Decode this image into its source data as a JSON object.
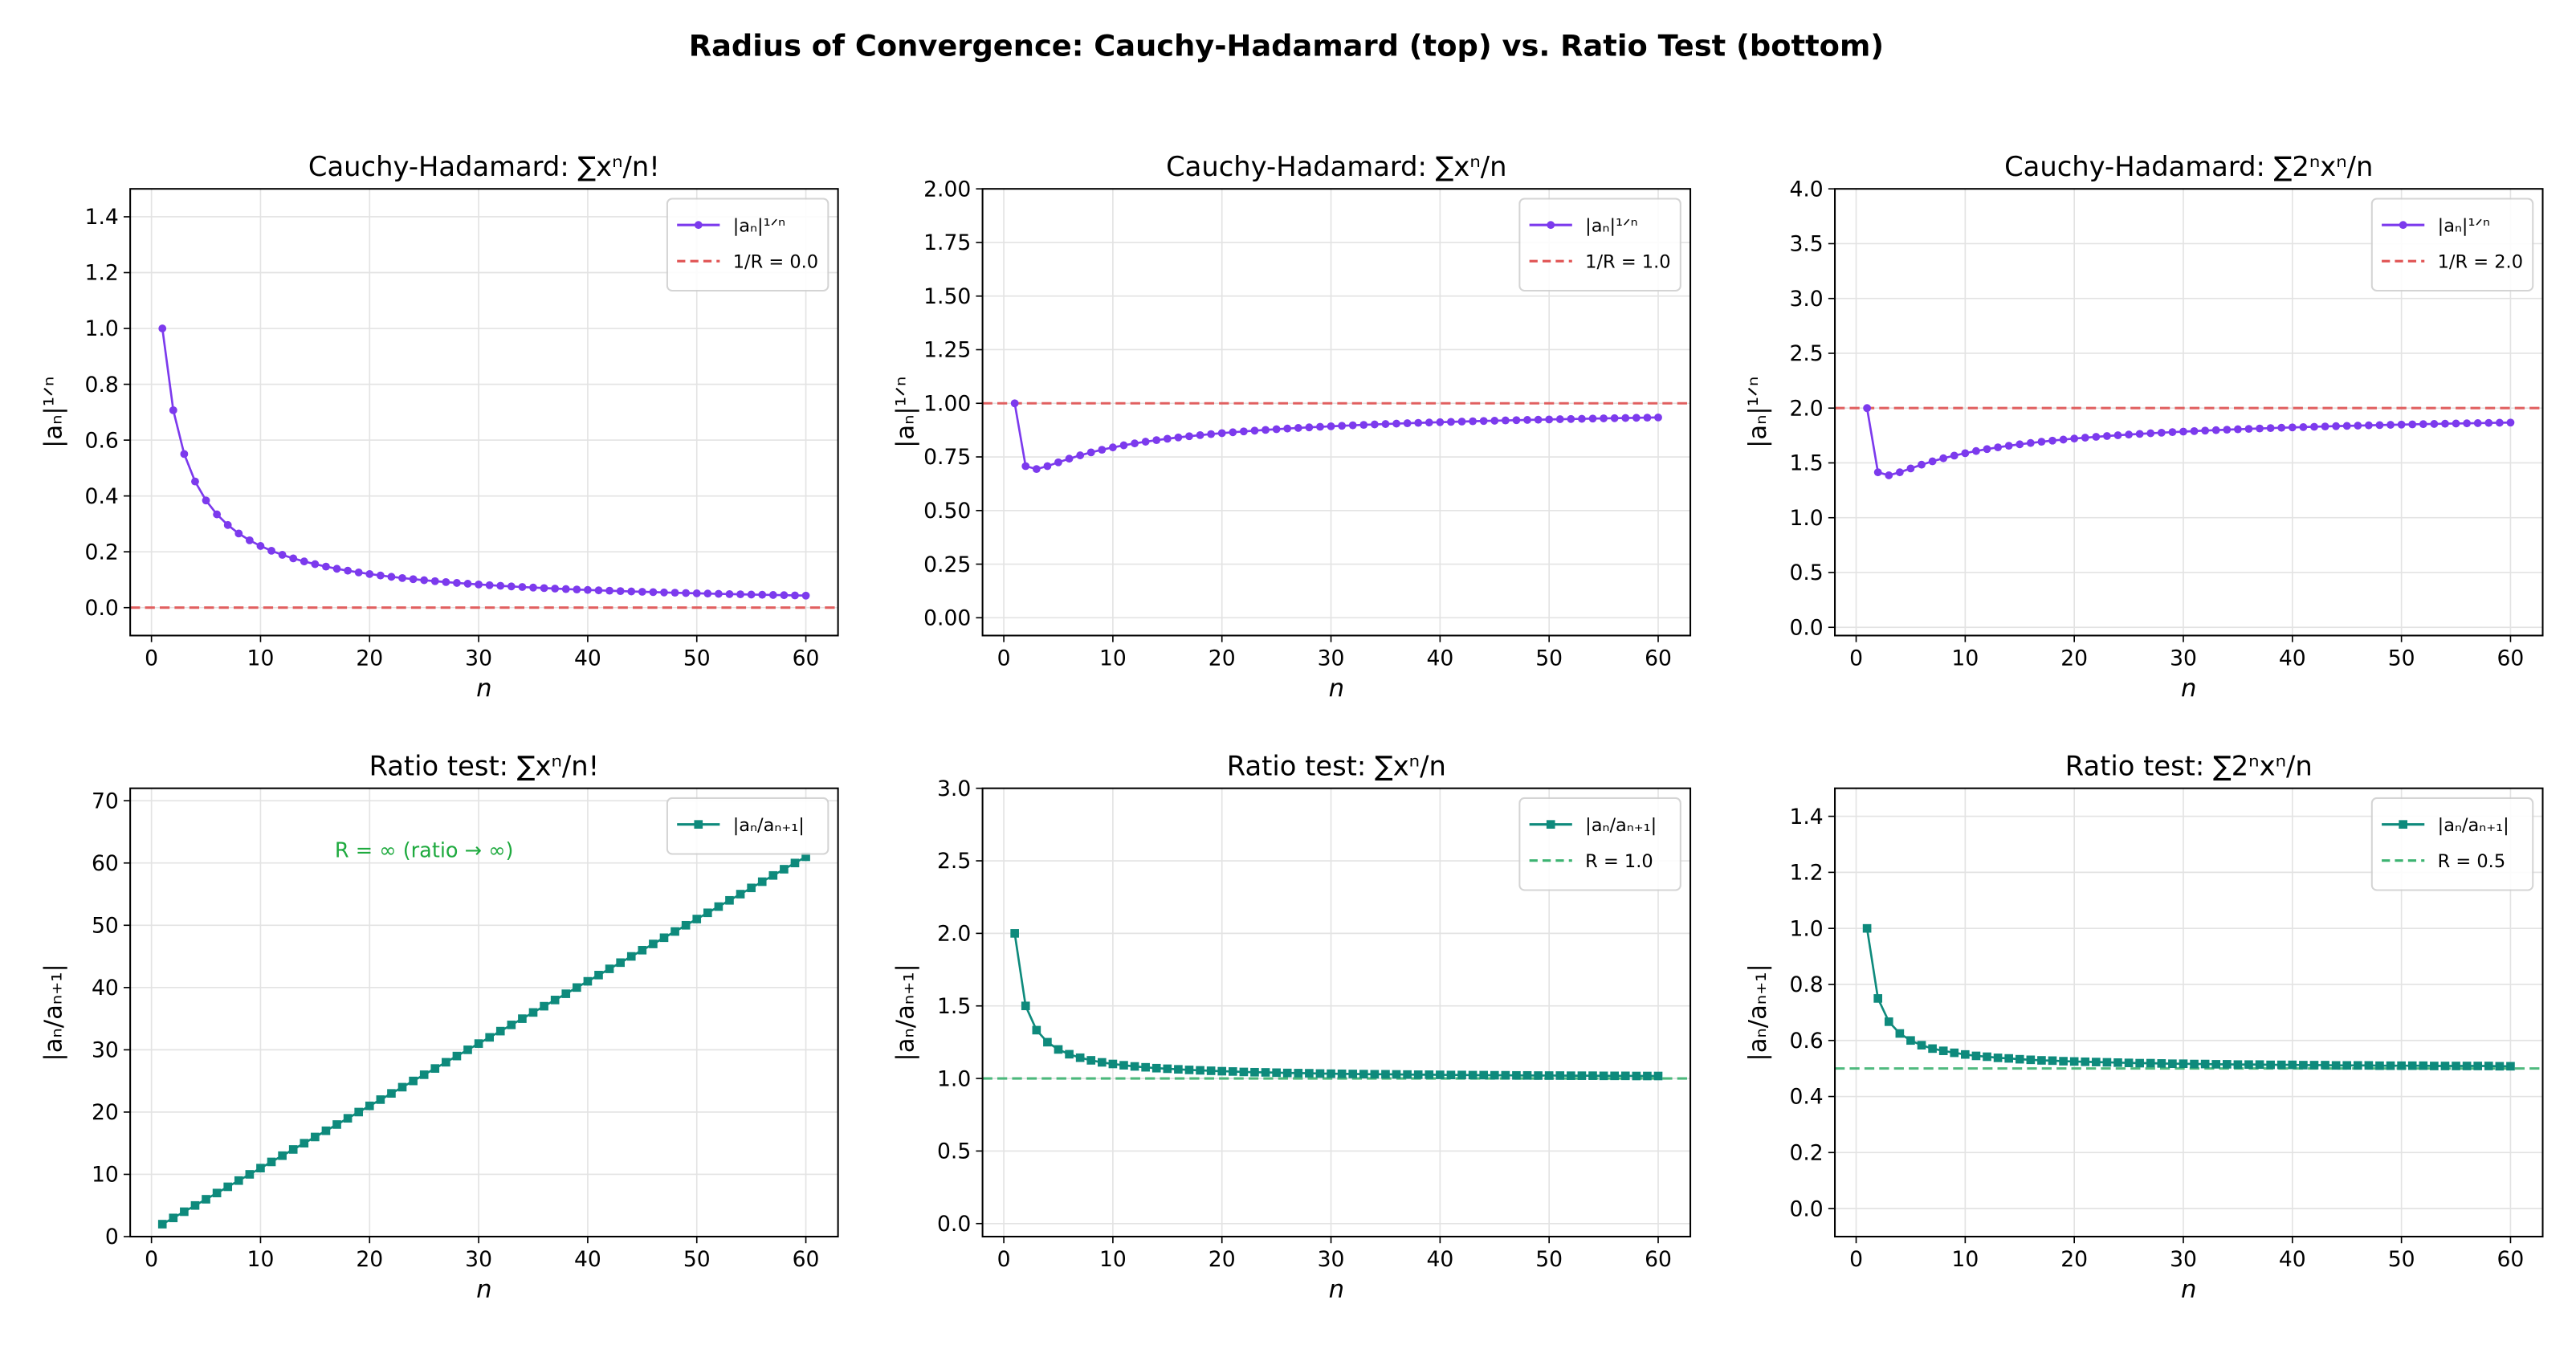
{
  "suptitle": "Radius of Convergence: Cauchy-Hadamard (top) vs. Ratio Test (bottom)",
  "colors": {
    "root_series": "#7c3aed",
    "root_ref": "#e05252",
    "ratio_series": "#0e8a7c",
    "ratio_ref": "#3cb371",
    "annotation": "#1faa3f"
  },
  "chart_data": [
    {
      "type": "line",
      "title": "Cauchy-Hadamard: ∑xⁿ/n!",
      "xlabel": "n",
      "ylabel": "|aₙ|¹ᐟⁿ",
      "xlim": [
        -1.95,
        62.95
      ],
      "ylim": [
        -0.1,
        1.5
      ],
      "grid": true,
      "legend": "top-right",
      "xticks": [
        "0",
        "10",
        "20",
        "30",
        "40",
        "50",
        "60"
      ],
      "yticks": [
        "0.0",
        "0.2",
        "0.4",
        "0.6",
        "0.8",
        "1.0",
        "1.2",
        "1.4"
      ],
      "marker": "circle",
      "series": [
        {
          "name": "|aₙ|¹ᐟⁿ",
          "x": [
            1,
            2,
            3,
            4,
            5,
            6,
            7,
            8,
            9,
            10,
            11,
            12,
            13,
            14,
            15,
            16,
            17,
            18,
            19,
            20,
            21,
            22,
            23,
            24,
            25,
            26,
            27,
            28,
            29,
            30,
            31,
            32,
            33,
            34,
            35,
            36,
            37,
            38,
            39,
            40,
            41,
            42,
            43,
            44,
            45,
            46,
            47,
            48,
            49,
            50,
            51,
            52,
            53,
            54,
            55,
            56,
            57,
            58,
            59,
            60
          ],
          "values": [
            1,
            0.7071,
            0.5503,
            0.4518,
            0.3839,
            0.334,
            0.2959,
            0.2656,
            0.2411,
            0.2208,
            0.2037,
            0.1891,
            0.1764,
            0.1654,
            0.1557,
            0.147,
            0.1393,
            0.1324,
            0.1261,
            0.1204,
            0.1152,
            0.1104,
            0.106,
            0.102,
            0.0983,
            0.0948,
            0.0916,
            0.0885,
            0.0857,
            0.083,
            0.0805,
            0.0782,
            0.076,
            0.0739,
            0.0719,
            0.07,
            0.0682,
            0.0665,
            0.0649,
            0.0634,
            0.0619,
            0.0606,
            0.0592,
            0.058,
            0.0567,
            0.0556,
            0.0544,
            0.0534,
            0.0523,
            0.0513,
            0.0504,
            0.0494,
            0.0485,
            0.0477,
            0.0469,
            0.0461,
            0.0453,
            0.0446,
            0.0438,
            0.0431
          ]
        }
      ],
      "reference": {
        "name": "1/R = 0.0",
        "value": 0.0
      }
    },
    {
      "type": "line",
      "title": "Cauchy-Hadamard: ∑xⁿ/n",
      "xlabel": "n",
      "ylabel": "|aₙ|¹ᐟⁿ",
      "xlim": [
        -1.95,
        62.95
      ],
      "ylim": [
        -0.083,
        2.0
      ],
      "grid": true,
      "legend": "top-right",
      "xticks": [
        "0",
        "10",
        "20",
        "30",
        "40",
        "50",
        "60"
      ],
      "yticks": [
        "0.00",
        "0.25",
        "0.50",
        "0.75",
        "1.00",
        "1.25",
        "1.50",
        "1.75",
        "2.00"
      ],
      "marker": "circle",
      "series": [
        {
          "name": "|aₙ|¹ᐟⁿ",
          "x": [
            1,
            2,
            3,
            4,
            5,
            6,
            7,
            8,
            9,
            10,
            11,
            12,
            13,
            14,
            15,
            16,
            17,
            18,
            19,
            20,
            21,
            22,
            23,
            24,
            25,
            26,
            27,
            28,
            29,
            30,
            31,
            32,
            33,
            34,
            35,
            36,
            37,
            38,
            39,
            40,
            41,
            42,
            43,
            44,
            45,
            46,
            47,
            48,
            49,
            50,
            51,
            52,
            53,
            54,
            55,
            56,
            57,
            58,
            59,
            60
          ],
          "values": [
            1,
            0.7071,
            0.6934,
            0.7071,
            0.7248,
            0.7418,
            0.7573,
            0.7711,
            0.7834,
            0.7943,
            0.8041,
            0.813,
            0.8209,
            0.8282,
            0.8348,
            0.8409,
            0.8465,
            0.8516,
            0.8564,
            0.8609,
            0.865,
            0.8689,
            0.8726,
            0.876,
            0.8792,
            0.8822,
            0.8851,
            0.8878,
            0.8904,
            0.8928,
            0.8951,
            0.8974,
            0.8995,
            0.9015,
            0.9034,
            0.9052,
            0.907,
            0.9087,
            0.9103,
            0.9119,
            0.9134,
            0.9148,
            0.9162,
            0.9176,
            0.9189,
            0.9201,
            0.9213,
            0.9225,
            0.9236,
            0.9247,
            0.9258,
            0.9268,
            0.9278,
            0.9288,
            0.9297,
            0.9306,
            0.9315,
            0.9324,
            0.9332,
            0.934
          ]
        }
      ],
      "reference": {
        "name": "1/R = 1.0",
        "value": 1.0
      }
    },
    {
      "type": "line",
      "title": "Cauchy-Hadamard: ∑2ⁿxⁿ/n",
      "xlabel": "n",
      "ylabel": "|aₙ|¹ᐟⁿ",
      "xlim": [
        -1.95,
        62.95
      ],
      "ylim": [
        -0.075,
        4.0
      ],
      "grid": true,
      "legend": "top-right",
      "xticks": [
        "0",
        "10",
        "20",
        "30",
        "40",
        "50",
        "60"
      ],
      "yticks": [
        "0.0",
        "0.5",
        "1.0",
        "1.5",
        "2.0",
        "2.5",
        "3.0",
        "3.5",
        "4.0"
      ],
      "marker": "circle",
      "series": [
        {
          "name": "|aₙ|¹ᐟⁿ",
          "x": [
            1,
            2,
            3,
            4,
            5,
            6,
            7,
            8,
            9,
            10,
            11,
            12,
            13,
            14,
            15,
            16,
            17,
            18,
            19,
            20,
            21,
            22,
            23,
            24,
            25,
            26,
            27,
            28,
            29,
            30,
            31,
            32,
            33,
            34,
            35,
            36,
            37,
            38,
            39,
            40,
            41,
            42,
            43,
            44,
            45,
            46,
            47,
            48,
            49,
            50,
            51,
            52,
            53,
            54,
            55,
            56,
            57,
            58,
            59,
            60
          ],
          "values": [
            2,
            1.4142,
            1.3868,
            1.4142,
            1.4496,
            1.4836,
            1.5146,
            1.5422,
            1.5668,
            1.5886,
            1.6082,
            1.626,
            1.6418,
            1.6564,
            1.6696,
            1.6818,
            1.693,
            1.7032,
            1.7128,
            1.7218,
            1.73,
            1.7378,
            1.7452,
            1.752,
            1.7584,
            1.7644,
            1.7702,
            1.7756,
            1.7808,
            1.7856,
            1.7902,
            1.7948,
            1.799,
            1.803,
            1.8068,
            1.8104,
            1.814,
            1.8174,
            1.8206,
            1.8238,
            1.8268,
            1.8296,
            1.8324,
            1.8352,
            1.8378,
            1.8402,
            1.8426,
            1.845,
            1.8472,
            1.8494,
            1.8516,
            1.8536,
            1.8556,
            1.8576,
            1.8594,
            1.8612,
            1.863,
            1.8648,
            1.8664,
            1.868
          ]
        }
      ],
      "reference": {
        "name": "1/R = 2.0",
        "value": 2.0
      }
    },
    {
      "type": "line",
      "title": "Ratio test: ∑xⁿ/n!",
      "xlabel": "n",
      "ylabel": "|aₙ/aₙ₊₁|",
      "xlim": [
        -1.95,
        62.95
      ],
      "ylim": [
        0,
        72
      ],
      "grid": true,
      "legend": "top-right",
      "xticks": [
        "0",
        "10",
        "20",
        "30",
        "40",
        "50",
        "60"
      ],
      "yticks": [
        "0",
        "10",
        "20",
        "30",
        "40",
        "50",
        "60",
        "70"
      ],
      "marker": "square",
      "series": [
        {
          "name": "|aₙ/aₙ₊₁|",
          "x": [
            1,
            2,
            3,
            4,
            5,
            6,
            7,
            8,
            9,
            10,
            11,
            12,
            13,
            14,
            15,
            16,
            17,
            18,
            19,
            20,
            21,
            22,
            23,
            24,
            25,
            26,
            27,
            28,
            29,
            30,
            31,
            32,
            33,
            34,
            35,
            36,
            37,
            38,
            39,
            40,
            41,
            42,
            43,
            44,
            45,
            46,
            47,
            48,
            49,
            50,
            51,
            52,
            53,
            54,
            55,
            56,
            57,
            58,
            59,
            60
          ],
          "values": [
            2,
            3,
            4,
            5,
            6,
            7,
            8,
            9,
            10,
            11,
            12,
            13,
            14,
            15,
            16,
            17,
            18,
            19,
            20,
            21,
            22,
            23,
            24,
            25,
            26,
            27,
            28,
            29,
            30,
            31,
            32,
            33,
            34,
            35,
            36,
            37,
            38,
            39,
            40,
            41,
            42,
            43,
            44,
            45,
            46,
            47,
            48,
            49,
            50,
            51,
            52,
            53,
            54,
            55,
            56,
            57,
            58,
            59,
            60,
            61
          ]
        }
      ],
      "annotation": {
        "text": "R = ∞ (ratio → ∞)",
        "x": 25,
        "y": 62
      }
    },
    {
      "type": "line",
      "title": "Ratio test: ∑xⁿ/n",
      "xlabel": "n",
      "ylabel": "|aₙ/aₙ₊₁|",
      "xlim": [
        -1.95,
        62.95
      ],
      "ylim": [
        -0.09,
        3.0
      ],
      "grid": true,
      "legend": "top-right",
      "xticks": [
        "0",
        "10",
        "20",
        "30",
        "40",
        "50",
        "60"
      ],
      "yticks": [
        "0.0",
        "0.5",
        "1.0",
        "1.5",
        "2.0",
        "2.5",
        "3.0"
      ],
      "marker": "square",
      "series": [
        {
          "name": "|aₙ/aₙ₊₁|",
          "x": [
            1,
            2,
            3,
            4,
            5,
            6,
            7,
            8,
            9,
            10,
            11,
            12,
            13,
            14,
            15,
            16,
            17,
            18,
            19,
            20,
            21,
            22,
            23,
            24,
            25,
            26,
            27,
            28,
            29,
            30,
            31,
            32,
            33,
            34,
            35,
            36,
            37,
            38,
            39,
            40,
            41,
            42,
            43,
            44,
            45,
            46,
            47,
            48,
            49,
            50,
            51,
            52,
            53,
            54,
            55,
            56,
            57,
            58,
            59,
            60
          ],
          "values": [
            2,
            1.5,
            1.333,
            1.25,
            1.2,
            1.167,
            1.143,
            1.125,
            1.111,
            1.1,
            1.091,
            1.083,
            1.077,
            1.071,
            1.067,
            1.063,
            1.059,
            1.056,
            1.053,
            1.05,
            1.048,
            1.045,
            1.043,
            1.042,
            1.04,
            1.038,
            1.037,
            1.036,
            1.034,
            1.033,
            1.032,
            1.031,
            1.03,
            1.029,
            1.029,
            1.028,
            1.027,
            1.026,
            1.026,
            1.025,
            1.024,
            1.024,
            1.023,
            1.023,
            1.022,
            1.022,
            1.021,
            1.021,
            1.02,
            1.02,
            1.02,
            1.019,
            1.019,
            1.019,
            1.018,
            1.018,
            1.018,
            1.017,
            1.017,
            1.017
          ]
        }
      ],
      "reference": {
        "name": "R = 1.0",
        "value": 1.0
      }
    },
    {
      "type": "line",
      "title": "Ratio test: ∑2ⁿxⁿ/n",
      "xlabel": "n",
      "ylabel": "|aₙ/aₙ₊₁|",
      "xlim": [
        -1.95,
        62.95
      ],
      "ylim": [
        -0.1,
        1.5
      ],
      "grid": true,
      "legend": "top-right",
      "xticks": [
        "0",
        "10",
        "20",
        "30",
        "40",
        "50",
        "60"
      ],
      "yticks": [
        "0.0",
        "0.2",
        "0.4",
        "0.6",
        "0.8",
        "1.0",
        "1.2",
        "1.4"
      ],
      "marker": "square",
      "series": [
        {
          "name": "|aₙ/aₙ₊₁|",
          "x": [
            1,
            2,
            3,
            4,
            5,
            6,
            7,
            8,
            9,
            10,
            11,
            12,
            13,
            14,
            15,
            16,
            17,
            18,
            19,
            20,
            21,
            22,
            23,
            24,
            25,
            26,
            27,
            28,
            29,
            30,
            31,
            32,
            33,
            34,
            35,
            36,
            37,
            38,
            39,
            40,
            41,
            42,
            43,
            44,
            45,
            46,
            47,
            48,
            49,
            50,
            51,
            52,
            53,
            54,
            55,
            56,
            57,
            58,
            59,
            60
          ],
          "values": [
            1,
            0.75,
            0.667,
            0.625,
            0.6,
            0.583,
            0.571,
            0.563,
            0.556,
            0.55,
            0.545,
            0.542,
            0.538,
            0.536,
            0.533,
            0.531,
            0.529,
            0.528,
            0.526,
            0.525,
            0.524,
            0.523,
            0.522,
            0.521,
            0.52,
            0.519,
            0.519,
            0.518,
            0.517,
            0.517,
            0.516,
            0.516,
            0.515,
            0.515,
            0.514,
            0.514,
            0.514,
            0.513,
            0.513,
            0.513,
            0.512,
            0.512,
            0.512,
            0.511,
            0.511,
            0.511,
            0.511,
            0.51,
            0.51,
            0.51,
            0.51,
            0.51,
            0.509,
            0.509,
            0.509,
            0.509,
            0.509,
            0.509,
            0.508,
            0.508
          ]
        }
      ],
      "reference": {
        "name": "R = 0.5",
        "value": 0.5
      }
    }
  ]
}
